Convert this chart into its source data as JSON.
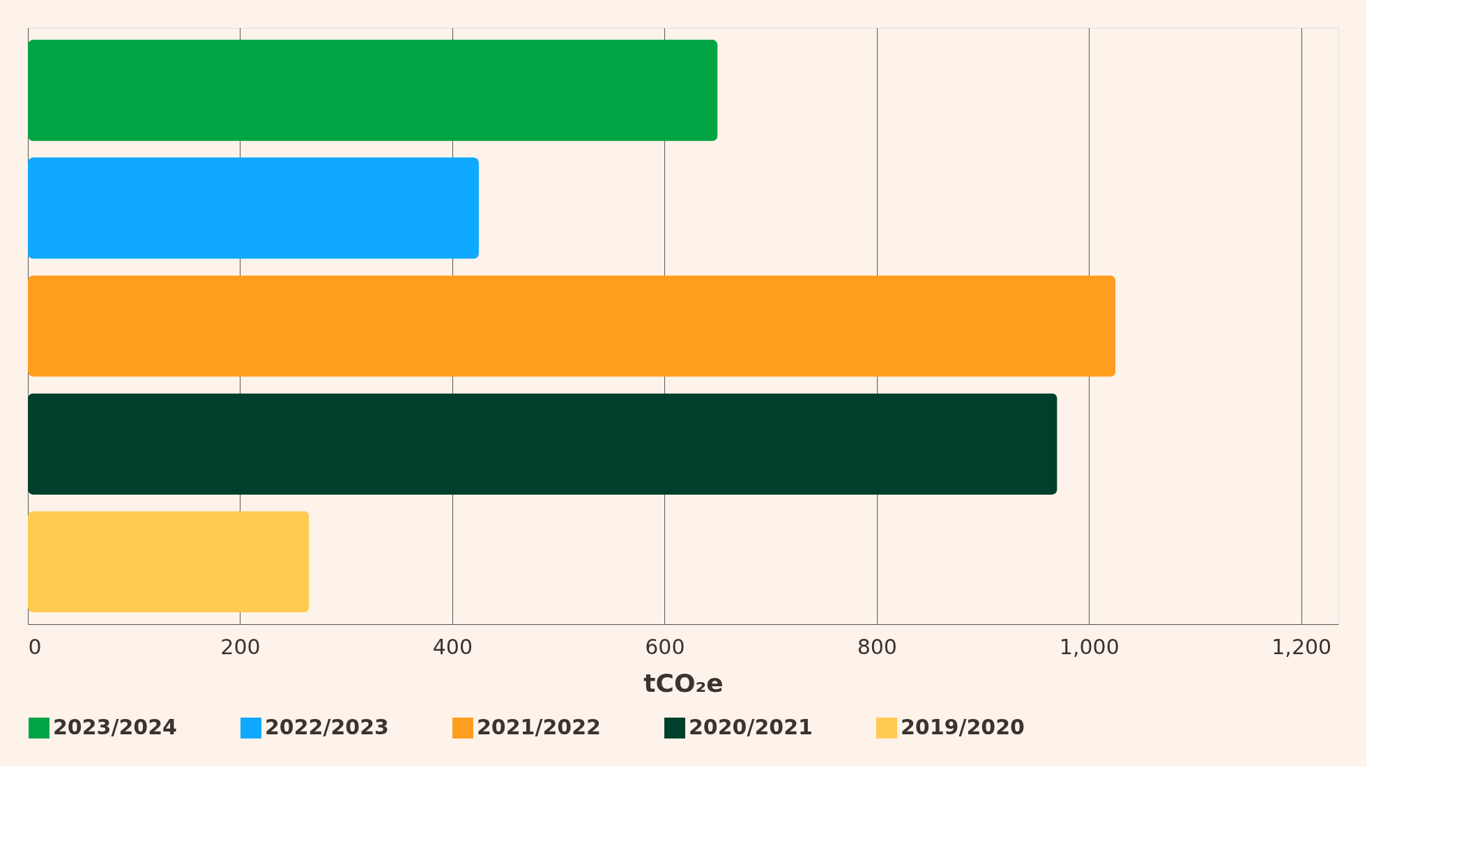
{
  "chart_data": {
    "type": "bar",
    "orientation": "horizontal",
    "xlabel": "tCO₂e",
    "categories": [
      null,
      null,
      null,
      null,
      null
    ],
    "series": [
      {
        "name": "2023/2024",
        "color": "#00a443",
        "values": [
          650,
          null,
          null,
          null,
          null
        ]
      },
      {
        "name": "2022/2023",
        "color": "#0fa9ff",
        "values": [
          null,
          425,
          null,
          null,
          null
        ]
      },
      {
        "name": "2021/2022",
        "color": "#ff9d1e",
        "values": [
          null,
          null,
          1025,
          null,
          null
        ]
      },
      {
        "name": "2020/2021",
        "color": "#003f2b",
        "values": [
          null,
          null,
          null,
          970,
          null
        ]
      },
      {
        "name": "2019/2020",
        "color": "#ffcb52",
        "values": [
          null,
          null,
          null,
          null,
          265
        ]
      }
    ],
    "xlim": [
      0,
      1235
    ],
    "xticks": [
      0,
      200,
      400,
      600,
      800,
      {
        "value": 1000,
        "label": "1,000"
      },
      {
        "value": 1200,
        "label": "1,200"
      }
    ],
    "grid": "x",
    "legend": "bottom"
  }
}
